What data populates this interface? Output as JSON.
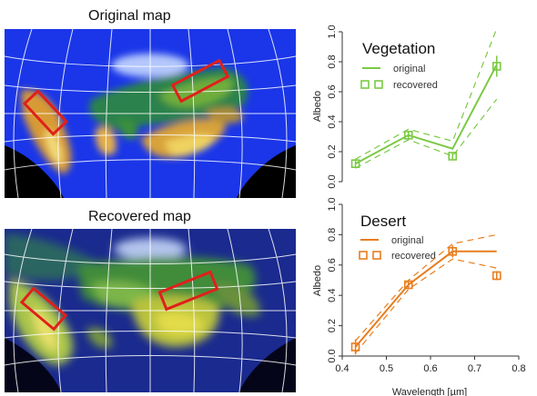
{
  "maps": {
    "top_title": "Original map",
    "bottom_title": "Recovered map"
  },
  "colors": {
    "vegetation": "#7ac943",
    "desert": "#e87d1e",
    "ocean": "#1a36e8",
    "highlight_box": "#e0201b"
  },
  "chart_data": [
    {
      "type": "line",
      "title": "Vegetation",
      "xlabel": "",
      "ylabel": "Albedo",
      "xlim": [
        0.4,
        0.8
      ],
      "ylim": [
        0.0,
        1.0
      ],
      "yticks": [
        "0.0",
        "0.2",
        "0.4",
        "0.6",
        "0.8",
        "1.0"
      ],
      "series": [
        {
          "name": "original",
          "x": [
            0.43,
            0.55,
            0.65,
            0.75
          ],
          "y": [
            0.12,
            0.31,
            0.22,
            0.78
          ],
          "style": "line"
        },
        {
          "name": "recovered",
          "x": [
            0.43,
            0.55,
            0.65,
            0.75
          ],
          "y": [
            0.12,
            0.31,
            0.17,
            0.77
          ],
          "err": [
            0.03,
            0.02,
            0.02,
            0.07
          ],
          "style": "square"
        }
      ],
      "bounds_upper": [
        0.15,
        0.35,
        0.27,
        1.02
      ],
      "bounds_lower": [
        0.09,
        0.28,
        0.17,
        0.55
      ]
    },
    {
      "type": "line",
      "title": "Desert",
      "xlabel": "Wavelength [µm]",
      "ylabel": "Albedo",
      "xlim": [
        0.4,
        0.8
      ],
      "ylim": [
        0.0,
        1.0
      ],
      "yticks": [
        "0.0",
        "0.2",
        "0.4",
        "0.6",
        "0.8",
        "1.0"
      ],
      "xticks": [
        "0.4",
        "0.5",
        "0.6",
        "0.7",
        "0.8"
      ],
      "series": [
        {
          "name": "original",
          "x": [
            0.43,
            0.55,
            0.65,
            0.75
          ],
          "y": [
            0.06,
            0.47,
            0.69,
            0.69
          ],
          "style": "line"
        },
        {
          "name": "recovered",
          "x": [
            0.43,
            0.55,
            0.65,
            0.75
          ],
          "y": [
            0.06,
            0.47,
            0.69,
            0.53
          ],
          "err": [
            0.05,
            0.02,
            0.04,
            0.03
          ],
          "style": "square"
        }
      ],
      "bounds_upper": [
        0.1,
        0.5,
        0.74,
        0.8
      ],
      "bounds_lower": [
        0.02,
        0.44,
        0.64,
        0.58
      ]
    }
  ]
}
